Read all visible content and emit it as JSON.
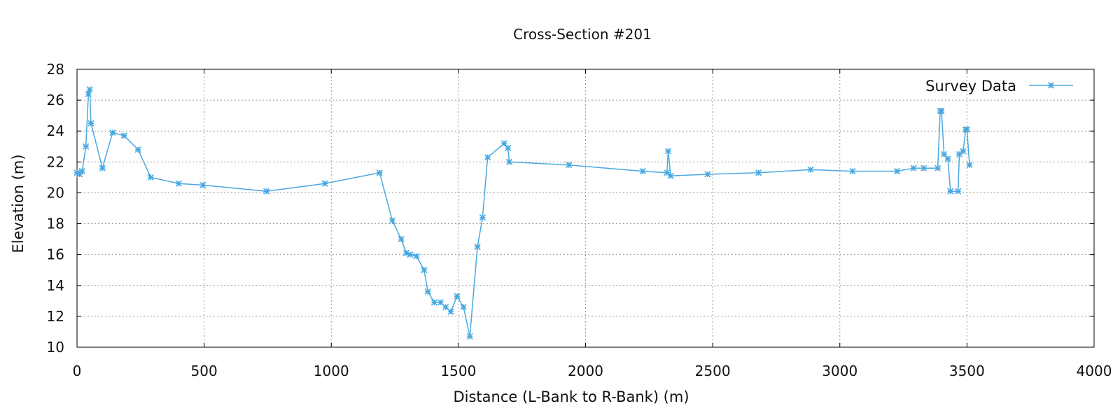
{
  "chart_data": {
    "type": "line",
    "title": "Cross-Section #201",
    "xlabel": "Distance (L-Bank to R-Bank) (m)",
    "ylabel": "Elevation (m)",
    "xlim": [
      0,
      4000
    ],
    "ylim": [
      10,
      28
    ],
    "xticks": [
      0,
      500,
      1000,
      1500,
      2000,
      2500,
      3000,
      3500,
      4000
    ],
    "yticks": [
      10,
      12,
      14,
      16,
      18,
      20,
      22,
      24,
      26,
      28
    ],
    "grid": true,
    "legend_position": "top-right",
    "colors": {
      "series": "#4aa8e0",
      "grid": "#9a9a9a",
      "axes": "#000000"
    },
    "series": [
      {
        "name": "Survey Data",
        "marker": "asterisk",
        "x": [
          0,
          10,
          20,
          35,
          45,
          50,
          55,
          100,
          140,
          185,
          240,
          290,
          400,
          495,
          745,
          975,
          1190,
          1240,
          1275,
          1295,
          1310,
          1335,
          1365,
          1380,
          1405,
          1430,
          1450,
          1470,
          1495,
          1520,
          1545,
          1575,
          1595,
          1615,
          1680,
          1695,
          1700,
          1935,
          2225,
          2320,
          2325,
          2335,
          2480,
          2680,
          2885,
          3050,
          3225,
          3290,
          3330,
          3385,
          3395,
          3400,
          3410,
          3425,
          3435,
          3465,
          3470,
          3485,
          3495,
          3500,
          3510
        ],
        "y": [
          21.3,
          21.2,
          21.4,
          23.0,
          26.4,
          26.7,
          24.5,
          21.6,
          23.9,
          23.7,
          22.8,
          21.0,
          20.6,
          20.5,
          20.1,
          20.6,
          21.3,
          18.2,
          17.0,
          16.1,
          16.0,
          15.9,
          15.0,
          13.6,
          12.9,
          12.9,
          12.6,
          12.3,
          13.3,
          12.6,
          10.7,
          16.5,
          18.4,
          22.3,
          23.2,
          22.9,
          22.0,
          21.8,
          21.4,
          21.3,
          22.7,
          21.1,
          21.2,
          21.3,
          21.5,
          21.4,
          21.4,
          21.6,
          21.6,
          21.6,
          25.3,
          25.3,
          22.5,
          22.2,
          20.1,
          20.1,
          22.5,
          22.7,
          24.1,
          24.1,
          21.8
        ]
      }
    ]
  }
}
